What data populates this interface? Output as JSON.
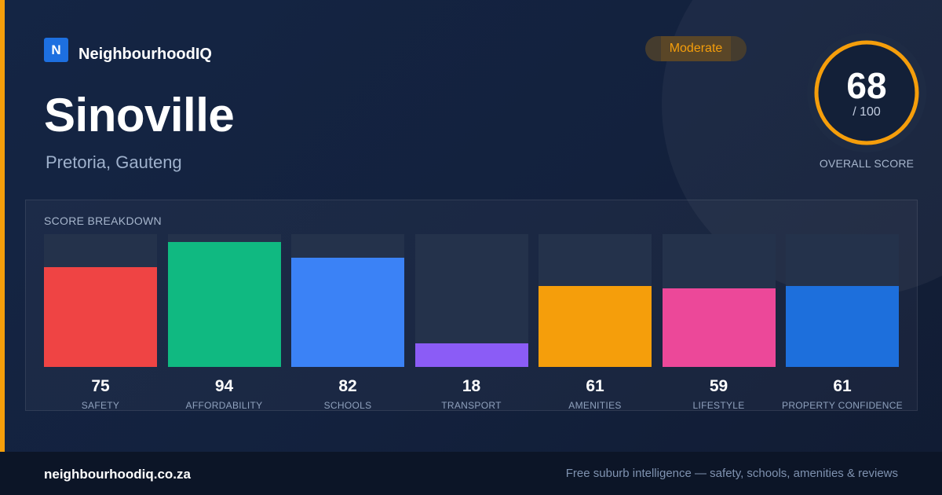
{
  "brand": {
    "logo_letter": "N",
    "name": "NeighbourhoodIQ"
  },
  "suburb": {
    "name": "Sinoville",
    "location": "Pretoria, Gauteng"
  },
  "badge": {
    "label": "Moderate",
    "color": "#f59e0b"
  },
  "overall": {
    "score": "68",
    "max_label": "/ 100",
    "score_value": 68,
    "max_value": 100,
    "label": "OVERALL SCORE",
    "ring_color": "#f59e0b"
  },
  "breakdown": {
    "title": "SCORE BREAKDOWN",
    "items": [
      {
        "label": "SAFETY",
        "value": 75,
        "value_label": "75",
        "color": "#ef4444"
      },
      {
        "label": "AFFORDABILITY",
        "value": 94,
        "value_label": "94",
        "color": "#10b981"
      },
      {
        "label": "SCHOOLS",
        "value": 82,
        "value_label": "82",
        "color": "#3b82f6"
      },
      {
        "label": "TRANSPORT",
        "value": 18,
        "value_label": "18",
        "color": "#8b5cf6"
      },
      {
        "label": "AMENITIES",
        "value": 61,
        "value_label": "61",
        "color": "#f59e0b"
      },
      {
        "label": "LIFESTYLE",
        "value": 59,
        "value_label": "59",
        "color": "#ec4899"
      },
      {
        "label": "PROPERTY CONFIDENCE",
        "value": 61,
        "value_label": "61",
        "color": "#1d6fdc"
      }
    ]
  },
  "footer": {
    "domain": "neighbourhoodiq.co.za",
    "tagline": "Free suburb intelligence — safety, schools, amenities & reviews"
  }
}
